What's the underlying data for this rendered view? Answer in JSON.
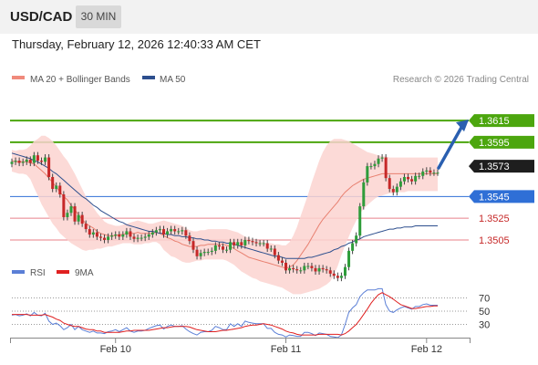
{
  "header": {
    "symbol": "USD/CAD",
    "timeframe": "30 MIN"
  },
  "datetime": "Thursday, February 12, 2026 12:40:33 AM CET",
  "legend": {
    "ma20": {
      "label": "MA 20 + Bollinger Bands",
      "color": "#f08a7c"
    },
    "ma50": {
      "label": "MA 50",
      "color": "#2d4f8e"
    }
  },
  "credit": "Research © 2026 Trading Central",
  "rsi_legend": {
    "rsi": {
      "label": "RSI",
      "color": "#5b7fd6"
    },
    "ma9": {
      "label": "9MA",
      "color": "#e02020"
    }
  },
  "colors": {
    "bull": "#2e9c3a",
    "bear": "#c62828",
    "resistance": "#4ca60e",
    "support": "#e8808a",
    "pivot": "#2f6fd6",
    "last": "#1e1e1e",
    "arrow": "#2a5fb0",
    "band": "#fbd3d0"
  },
  "chart_data": [
    {
      "type": "candlestick",
      "symbol": "USD/CAD",
      "interval": "30 MIN",
      "x_ticks": [
        "Feb 10",
        "Feb 11",
        "Feb 12"
      ],
      "ylim": [
        1.3489,
        1.3642
      ],
      "levels": [
        {
          "value": 1.3615,
          "label": "1.3615",
          "kind": "resistance"
        },
        {
          "value": 1.3595,
          "label": "1.3595",
          "kind": "resistance"
        },
        {
          "value": 1.3573,
          "label": "1.3573",
          "kind": "last"
        },
        {
          "value": 1.3545,
          "label": "1.3545",
          "kind": "pivot"
        },
        {
          "value": 1.3525,
          "label": "1.3525",
          "kind": "support"
        },
        {
          "value": 1.3505,
          "label": "1.3505",
          "kind": "support"
        }
      ],
      "close": [
        1.3577,
        1.3578,
        1.3576,
        1.3577,
        1.3579,
        1.3576,
        1.3583,
        1.3578,
        1.3577,
        1.3581,
        1.3563,
        1.3552,
        1.3555,
        1.3547,
        1.3526,
        1.353,
        1.3536,
        1.3522,
        1.3528,
        1.352,
        1.3515,
        1.351,
        1.3512,
        1.3508,
        1.3507,
        1.3505,
        1.3508,
        1.3509,
        1.351,
        1.3508,
        1.351,
        1.3513,
        1.3508,
        1.3506,
        1.3507,
        1.3507,
        1.3508,
        1.351,
        1.3512,
        1.3514,
        1.3515,
        1.351,
        1.3513,
        1.3515,
        1.3513,
        1.3513,
        1.3514,
        1.3509,
        1.3504,
        1.3496,
        1.349,
        1.3493,
        1.3494,
        1.3494,
        1.3495,
        1.35,
        1.3499,
        1.3496,
        1.3496,
        1.3503,
        1.35,
        1.3503,
        1.35,
        1.3505,
        1.3504,
        1.3503,
        1.3502,
        1.3502,
        1.3502,
        1.3497,
        1.3497,
        1.3491,
        1.3486,
        1.3484,
        1.3477,
        1.3479,
        1.3478,
        1.3477,
        1.3477,
        1.3481,
        1.3481,
        1.3479,
        1.3476,
        1.3479,
        1.3478,
        1.3477,
        1.3474,
        1.3472,
        1.347,
        1.3472,
        1.348,
        1.3495,
        1.3502,
        1.3509,
        1.3536,
        1.3558,
        1.3573,
        1.3573,
        1.3575,
        1.358,
        1.3581,
        1.3562,
        1.3552,
        1.3549,
        1.3554,
        1.3559,
        1.3563,
        1.3561,
        1.3559,
        1.3564,
        1.3564,
        1.3568,
        1.3569,
        1.3567,
        1.3567,
        1.3567
      ],
      "ma20": [
        1.3578,
        1.3577,
        1.3577,
        1.3577,
        1.3577,
        1.3576,
        1.3575,
        1.3572,
        1.3569,
        1.3566,
        1.3562,
        1.3558,
        1.3554,
        1.3549,
        1.3545,
        1.3542,
        1.3537,
        1.3533,
        1.3528,
        1.3524,
        1.352,
        1.3518,
        1.3516,
        1.3513,
        1.3511,
        1.351,
        1.3509,
        1.3509,
        1.3509,
        1.351,
        1.351,
        1.3511,
        1.3511,
        1.3511,
        1.3512,
        1.3511,
        1.3511,
        1.3511,
        1.3511,
        1.3512,
        1.3511,
        1.3509,
        1.3507,
        1.3506,
        1.3504,
        1.3503,
        1.3501,
        1.35,
        1.3499,
        1.3499,
        1.3499,
        1.35,
        1.35,
        1.3501,
        1.3501,
        1.3501,
        1.3501,
        1.3501,
        1.35,
        1.3499,
        1.3497,
        1.3495,
        1.3493,
        1.3491,
        1.3489,
        1.3488,
        1.3487,
        1.3486,
        1.3485,
        1.3484,
        1.3483,
        1.3482,
        1.3481,
        1.348,
        1.3479,
        1.348,
        1.3482,
        1.3486,
        1.3491,
        1.3496,
        1.3501,
        1.3507,
        1.3513,
        1.3519,
        1.3524,
        1.3528,
        1.3532,
        1.3536,
        1.354,
        1.3545,
        1.3549,
        1.3552,
        1.3555,
        1.3557,
        1.3559,
        1.3561,
        1.3562,
        1.3563,
        1.3564,
        1.3565,
        1.3566,
        1.3566,
        1.3566,
        1.3566,
        1.3566,
        1.3566,
        1.3566,
        1.3566,
        1.3566,
        1.3566,
        1.3566,
        1.3566,
        1.3566,
        1.3566,
        1.3566,
        1.3566
      ],
      "bb_upper": [
        1.3588,
        1.3587,
        1.3588,
        1.3588,
        1.3589,
        1.3592,
        1.3596,
        1.3598,
        1.3601,
        1.3601,
        1.3599,
        1.3596,
        1.3592,
        1.3587,
        1.3582,
        1.3578,
        1.3572,
        1.3566,
        1.3559,
        1.3552,
        1.3545,
        1.354,
        1.3535,
        1.353,
        1.3526,
        1.3522,
        1.352,
        1.3519,
        1.3518,
        1.3518,
        1.3519,
        1.352,
        1.3521,
        1.3522,
        1.3523,
        1.3522,
        1.3521,
        1.352,
        1.352,
        1.3521,
        1.3522,
        1.3523,
        1.3522,
        1.3521,
        1.352,
        1.3519,
        1.3518,
        1.3516,
        1.3514,
        1.3513,
        1.3513,
        1.3514,
        1.3514,
        1.3515,
        1.3515,
        1.3515,
        1.3515,
        1.3515,
        1.3515,
        1.3514,
        1.3513,
        1.3512,
        1.351,
        1.3508,
        1.3507,
        1.3505,
        1.3505,
        1.3504,
        1.3503,
        1.3502,
        1.3502,
        1.3501,
        1.3501,
        1.35,
        1.35,
        1.3503,
        1.3509,
        1.3517,
        1.3527,
        1.3537,
        1.3547,
        1.3558,
        1.3568,
        1.3578,
        1.3586,
        1.3592,
        1.3596,
        1.3598,
        1.3598,
        1.3598,
        1.3597,
        1.3596,
        1.3594,
        1.3592,
        1.359,
        1.3588,
        1.3586,
        1.3585,
        1.3584,
        1.3583,
        1.3582,
        1.3582,
        1.3581,
        1.3581,
        1.3581,
        1.3581,
        1.3581,
        1.3581,
        1.3581,
        1.3581,
        1.3581,
        1.3581,
        1.3581,
        1.3581,
        1.3581,
        1.3581
      ],
      "bb_lower": [
        1.3568,
        1.3567,
        1.3566,
        1.3566,
        1.3565,
        1.3561,
        1.3553,
        1.3546,
        1.3538,
        1.3532,
        1.3526,
        1.352,
        1.3516,
        1.3511,
        1.3508,
        1.3505,
        1.3502,
        1.35,
        1.3498,
        1.3496,
        1.3495,
        1.3496,
        1.3496,
        1.3497,
        1.3497,
        1.3498,
        1.3499,
        1.3499,
        1.35,
        1.3501,
        1.3502,
        1.3502,
        1.3502,
        1.3501,
        1.3501,
        1.3501,
        1.3502,
        1.3502,
        1.3503,
        1.3503,
        1.3501,
        1.3496,
        1.3493,
        1.349,
        1.3489,
        1.3487,
        1.3485,
        1.3484,
        1.3484,
        1.3485,
        1.3486,
        1.3486,
        1.3487,
        1.3487,
        1.3487,
        1.3487,
        1.3487,
        1.3487,
        1.3486,
        1.3484,
        1.3482,
        1.3479,
        1.3476,
        1.3474,
        1.3472,
        1.347,
        1.3469,
        1.3467,
        1.3466,
        1.3465,
        1.3464,
        1.3463,
        1.3462,
        1.3461,
        1.3459,
        1.3457,
        1.3455,
        1.3455,
        1.3455,
        1.3456,
        1.3457,
        1.3458,
        1.3459,
        1.346,
        1.3462,
        1.3464,
        1.3467,
        1.3473,
        1.3481,
        1.3491,
        1.35,
        1.3508,
        1.3516,
        1.3523,
        1.3529,
        1.3534,
        1.3537,
        1.354,
        1.3543,
        1.3545,
        1.3546,
        1.3547,
        1.3548,
        1.3548,
        1.3549,
        1.3549,
        1.3549,
        1.355,
        1.355,
        1.355,
        1.355,
        1.355,
        1.355,
        1.355,
        1.355,
        1.355
      ],
      "ma50": [
        1.3585,
        1.3584,
        1.3583,
        1.3582,
        1.3581,
        1.358,
        1.3578,
        1.3577,
        1.3575,
        1.3573,
        1.3571,
        1.3568,
        1.3566,
        1.3563,
        1.356,
        1.3557,
        1.3554,
        1.3551,
        1.3548,
        1.3545,
        1.3543,
        1.354,
        1.3537,
        1.3535,
        1.3532,
        1.353,
        1.3528,
        1.3526,
        1.3524,
        1.3522,
        1.3521,
        1.3519,
        1.3518,
        1.3517,
        1.3516,
        1.3515,
        1.3514,
        1.3513,
        1.3513,
        1.3512,
        1.3511,
        1.3511,
        1.351,
        1.351,
        1.3509,
        1.3509,
        1.3508,
        1.3508,
        1.3507,
        1.3507,
        1.3506,
        1.3506,
        1.3505,
        1.3505,
        1.3504,
        1.3504,
        1.3503,
        1.3503,
        1.3502,
        1.3502,
        1.3501,
        1.35,
        1.3499,
        1.3498,
        1.3497,
        1.3496,
        1.3495,
        1.3494,
        1.3493,
        1.3492,
        1.3491,
        1.349,
        1.349,
        1.3489,
        1.3488,
        1.3488,
        1.3488,
        1.3488,
        1.3488,
        1.3488,
        1.3489,
        1.3489,
        1.349,
        1.3491,
        1.3492,
        1.3493,
        1.3494,
        1.3496,
        1.3497,
        1.3499,
        1.35,
        1.3502,
        1.3503,
        1.3505,
        1.3506,
        1.3508,
        1.3509,
        1.351,
        1.3511,
        1.3512,
        1.3513,
        1.3514,
        1.3515,
        1.3515,
        1.3516,
        1.3516,
        1.3517,
        1.3517,
        1.3517,
        1.3518,
        1.3518,
        1.3518,
        1.3518,
        1.3518,
        1.3518,
        1.3518
      ],
      "forecast_arrow": {
        "from": 1.3573,
        "to": 1.3615
      }
    },
    {
      "type": "line",
      "name": "RSI",
      "ylim": [
        10,
        90
      ],
      "y_ticks": [
        70,
        50,
        30
      ],
      "rsi": [
        44,
        45,
        43,
        44,
        46,
        43,
        48,
        44,
        43,
        47,
        35,
        30,
        32,
        28,
        22,
        25,
        30,
        22,
        27,
        22,
        20,
        18,
        20,
        17,
        17,
        16,
        19,
        20,
        22,
        19,
        22,
        25,
        20,
        18,
        20,
        20,
        21,
        24,
        26,
        28,
        29,
        23,
        27,
        29,
        27,
        27,
        28,
        23,
        19,
        16,
        14,
        18,
        19,
        19,
        21,
        27,
        25,
        22,
        22,
        31,
        27,
        31,
        27,
        35,
        33,
        32,
        31,
        31,
        31,
        24,
        24,
        18,
        15,
        14,
        11,
        14,
        13,
        12,
        12,
        18,
        18,
        16,
        13,
        17,
        16,
        15,
        12,
        11,
        10,
        14,
        30,
        48,
        55,
        60,
        72,
        78,
        82,
        82,
        82,
        84,
        84,
        60,
        50,
        48,
        52,
        55,
        57,
        55,
        53,
        57,
        57,
        60,
        61,
        59,
        59,
        59
      ],
      "ma9": [
        45,
        45,
        45,
        45,
        45,
        44,
        44,
        44,
        44,
        45,
        43,
        41,
        38,
        36,
        32,
        30,
        28,
        27,
        27,
        25,
        23,
        22,
        22,
        20,
        20,
        18,
        18,
        18,
        18,
        18,
        19,
        20,
        20,
        21,
        21,
        21,
        21,
        21,
        22,
        23,
        24,
        25,
        25,
        26,
        27,
        27,
        27,
        27,
        26,
        24,
        22,
        21,
        20,
        19,
        19,
        19,
        20,
        21,
        21,
        22,
        23,
        24,
        25,
        27,
        28,
        29,
        29,
        30,
        31,
        30,
        29,
        27,
        25,
        23,
        20,
        18,
        17,
        15,
        14,
        14,
        14,
        14,
        14,
        15,
        15,
        15,
        15,
        15,
        15,
        14,
        16,
        20,
        25,
        30,
        37,
        45,
        53,
        62,
        69,
        75,
        78,
        75,
        72,
        68,
        64,
        60,
        58,
        56,
        54,
        54,
        55,
        56,
        57,
        57,
        58,
        58
      ]
    }
  ]
}
